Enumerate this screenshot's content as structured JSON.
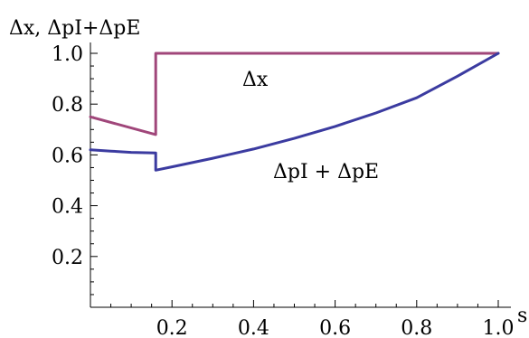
{
  "chart_data": {
    "type": "line",
    "title": "",
    "ylabel": "Δx, ΔpI+ΔpE",
    "xlabel": "s",
    "xlim": [
      0,
      1.0
    ],
    "ylim": [
      0,
      1.0
    ],
    "x_ticks": [
      0.2,
      0.4,
      0.6,
      0.8,
      1.0
    ],
    "y_ticks": [
      0.2,
      0.4,
      0.6,
      0.8,
      1.0
    ],
    "x_tick_labels": [
      "0.2",
      "0.4",
      "0.6",
      "0.8",
      "1.0"
    ],
    "y_tick_labels": [
      "0.2",
      "0.4",
      "0.6",
      "0.8",
      "1.0"
    ],
    "grid": false,
    "series": [
      {
        "name": "Δx",
        "color": "#a0467a",
        "x": [
          0,
          0.16,
          0.16,
          0.3,
          0.5,
          0.7,
          0.9,
          1.0
        ],
        "y": [
          0.75,
          0.68,
          1.0,
          1.0,
          1.0,
          1.0,
          1.0,
          1.0
        ]
      },
      {
        "name": "ΔpI + ΔpE",
        "color": "#3b3ba0",
        "x": [
          0,
          0.05,
          0.1,
          0.16,
          0.16,
          0.2,
          0.3,
          0.4,
          0.5,
          0.6,
          0.7,
          0.8,
          0.9,
          1.0
        ],
        "y": [
          0.62,
          0.615,
          0.61,
          0.608,
          0.54,
          0.553,
          0.587,
          0.623,
          0.665,
          0.712,
          0.765,
          0.825,
          0.91,
          1.0
        ]
      }
    ],
    "annotations": [
      {
        "text": "Δx",
        "series": 0
      },
      {
        "text": "ΔpI + ΔpE",
        "series": 1
      }
    ]
  }
}
